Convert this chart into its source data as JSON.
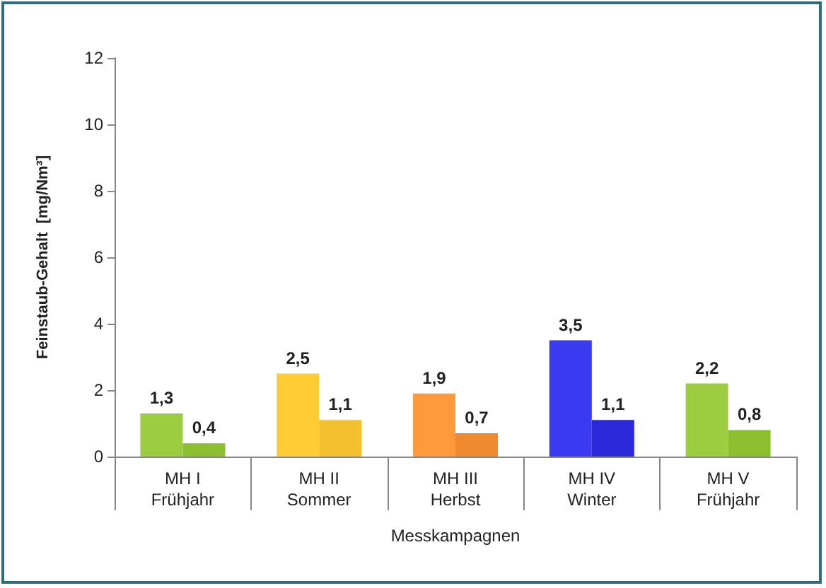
{
  "chart_data": {
    "type": "bar",
    "ylabel": "Feinstaub-Gehalt  [mg/Nm³]",
    "xlabel": "Messkampagnen",
    "categories": [
      "MH I\nFrühjahr",
      "MH II\nSommer",
      "MH III\nHerbst",
      "MH IV\nWinter",
      "MH V\nFrühjahr"
    ],
    "series": [
      {
        "colors": [
          "#9ccc40",
          "#ffcc33",
          "#ff9a3c",
          "#3a3af0",
          "#9ccc40"
        ],
        "values": [
          1.3,
          2.5,
          1.9,
          3.5,
          2.2
        ],
        "value_labels": [
          "1,3",
          "2,5",
          "1,9",
          "3,5",
          "2,2"
        ]
      },
      {
        "colors": [
          "#8cbf30",
          "#f5c030",
          "#f08a30",
          "#2828d8",
          "#8cbf30"
        ],
        "values": [
          0.4,
          1.1,
          0.7,
          1.1,
          0.8
        ],
        "value_labels": [
          "0,4",
          "1,1",
          "0,7",
          "1,1",
          "0,8"
        ]
      }
    ],
    "ylim": [
      0,
      12
    ],
    "yticks": [
      0,
      2,
      4,
      6,
      8,
      10,
      12
    ],
    "grid": false
  }
}
